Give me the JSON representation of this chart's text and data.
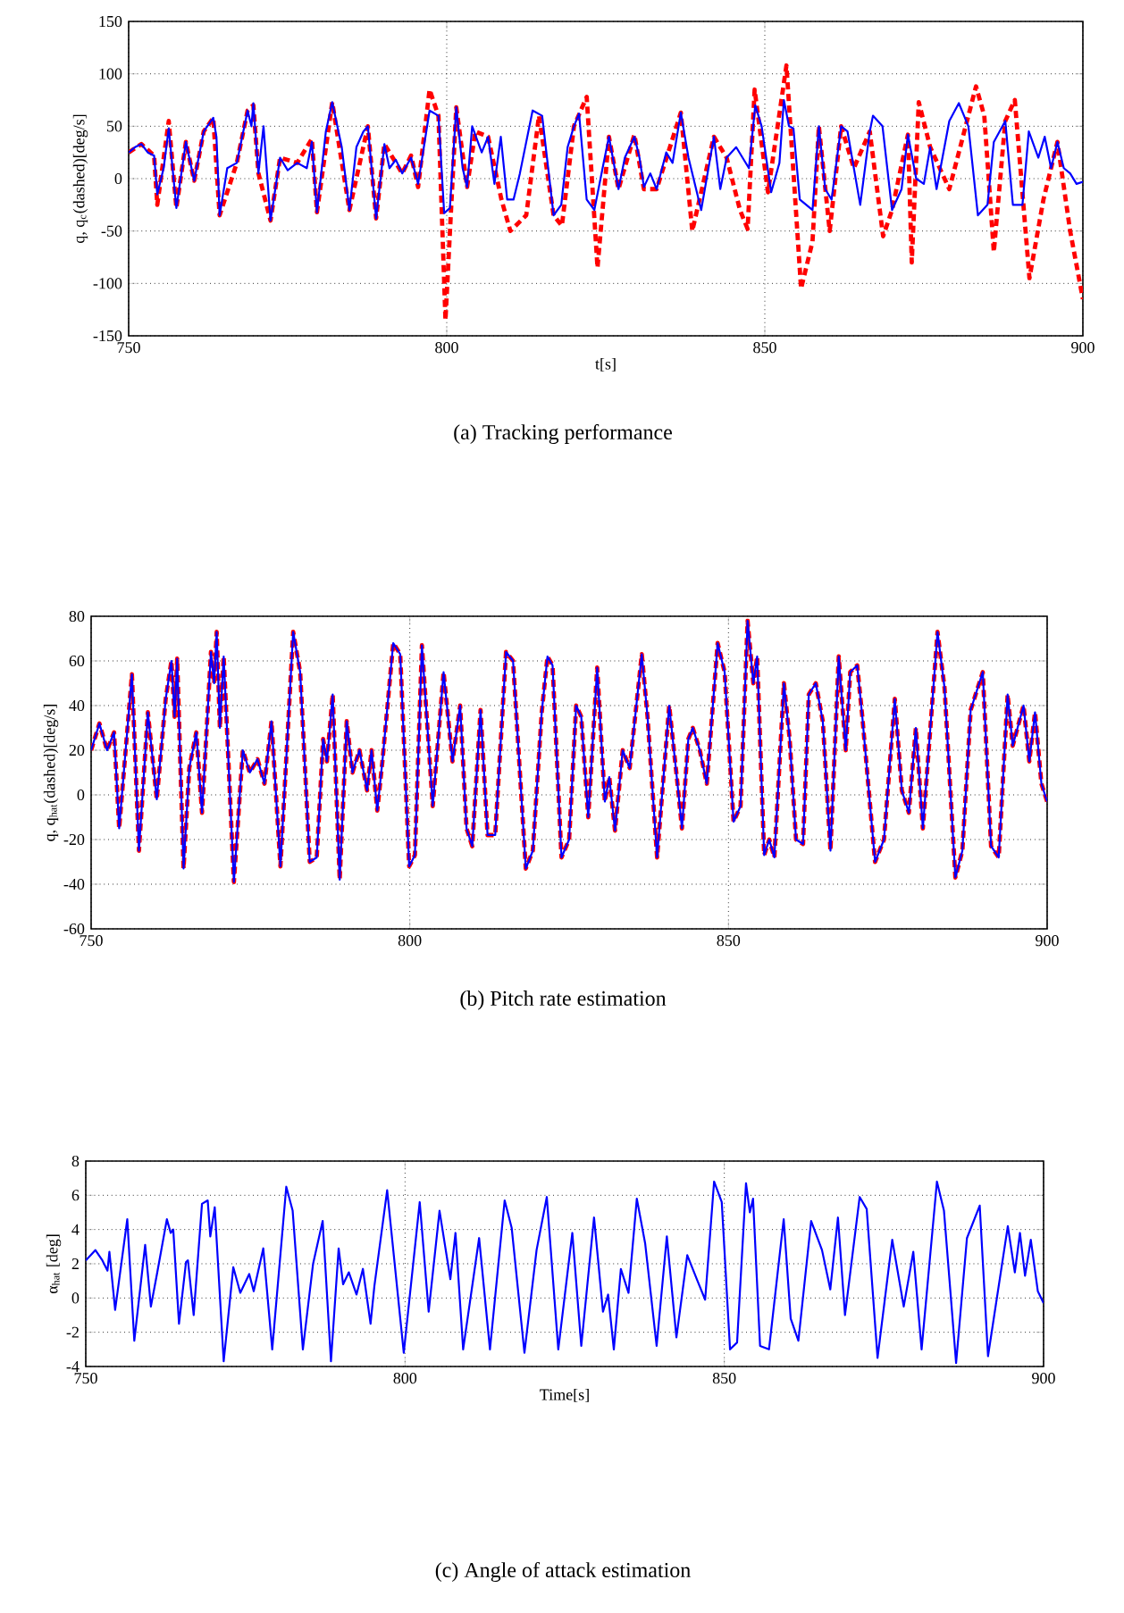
{
  "chart_data": [
    {
      "type": "line",
      "ylabel": "q, q$_{c}$(dashed)[deg/s]",
      "xlabel": "t[s]",
      "annotations": [
        "(a) Tracking performance"
      ],
      "xlim": [
        750,
        900
      ],
      "ylim": [
        -150,
        150
      ],
      "xticks": [
        750,
        800,
        850,
        900
      ],
      "yticks": [
        -150,
        -100,
        -50,
        0,
        50,
        100,
        150
      ],
      "grid": true,
      "series": [
        {
          "color": "#ff0000",
          "line_style": "dashed",
          "x": [
            750,
            752,
            754,
            754.5,
            756.3,
            757.5,
            759,
            760.3,
            761.8,
            763.3,
            764.3,
            767,
            768.7,
            769.6,
            770.4,
            772.3,
            773.8,
            776.5,
            778.8,
            779.6,
            782,
            784.7,
            787.6,
            788.9,
            790.2,
            793,
            794.4,
            795.5,
            797.3,
            798.7,
            799.8,
            801.5,
            803.2,
            804.5,
            806.5,
            808.6,
            810,
            812.5,
            814.5,
            816.8,
            818.1,
            820,
            822,
            823.7,
            825.5,
            827,
            829.5,
            831,
            833,
            836.8,
            838.6,
            842,
            844,
            846.1,
            847.3,
            848.4,
            850.5,
            853.4,
            855.7,
            857.5,
            858.5,
            860.2,
            862,
            864,
            866.5,
            868.6,
            870,
            872.5,
            873.1,
            874.2,
            876,
            879,
            883.2,
            884.5,
            886,
            887.8,
            889.3,
            891.6,
            893.8,
            895,
            896,
            898,
            900
          ],
          "values": [
            25,
            33,
            22,
            -25,
            55,
            -28,
            35,
            -2,
            45,
            58,
            -35,
            15,
            65,
            70,
            5,
            -40,
            20,
            15,
            38,
            -32,
            73,
            -30,
            50,
            -38,
            33,
            5,
            22,
            -8,
            85,
            60,
            -135,
            68,
            -8,
            45,
            40,
            -20,
            -50,
            -35,
            60,
            -35,
            -45,
            50,
            78,
            -85,
            40,
            -10,
            42,
            -10,
            -10,
            63,
            -50,
            40,
            20,
            -30,
            -48,
            85,
            -13,
            108,
            -105,
            -60,
            50,
            -50,
            50,
            10,
            45,
            -55,
            -30,
            42,
            -80,
            73,
            30,
            -10,
            88,
            60,
            -70,
            55,
            75,
            -95,
            -20,
            10,
            35,
            -50,
            -115
          ]
        },
        {
          "color": "#0000ff",
          "line_style": "solid",
          "x": [
            750,
            751,
            752,
            753,
            754,
            754.5,
            755.5,
            756.3,
            757.5,
            759,
            760.3,
            761.8,
            763.3,
            763.8,
            764.3,
            765.5,
            767,
            768.7,
            769.3,
            769.6,
            770.4,
            771.2,
            772.3,
            773.8,
            775,
            776.5,
            778,
            778.8,
            779.6,
            781,
            782,
            783.5,
            784.7,
            785.8,
            786.9,
            787.6,
            788.9,
            790.2,
            791,
            792,
            793,
            794.4,
            795.5,
            797.3,
            798.7,
            799.6,
            800.5,
            801.5,
            802.5,
            803.2,
            804,
            805.5,
            806.5,
            807.5,
            808.5,
            809.5,
            810.5,
            811.5,
            813.5,
            815,
            816.8,
            818,
            819,
            820,
            820.8,
            822,
            823.2,
            824.5,
            825.5,
            827,
            828,
            829.5,
            830.3,
            831,
            832,
            833,
            834.5,
            835.5,
            836.8,
            838,
            840,
            842,
            843,
            844,
            845.5,
            846.5,
            847.5,
            848.5,
            849.5,
            851,
            852.3,
            853,
            853.8,
            854.5,
            855.5,
            856.5,
            857.5,
            858.5,
            859.5,
            860.5,
            862,
            863,
            864,
            865,
            866.5,
            867,
            868.5,
            870,
            871.5,
            872.5,
            873.8,
            875,
            876,
            877,
            879,
            880.5,
            882,
            883.5,
            885,
            886,
            887.8,
            889,
            890.5,
            891.5,
            893,
            894,
            895,
            896,
            897,
            898,
            899,
            900
          ],
          "values": [
            25,
            30,
            33,
            25,
            22,
            -15,
            10,
            48,
            -28,
            35,
            -2,
            45,
            58,
            40,
            -35,
            10,
            15,
            65,
            50,
            72,
            5,
            50,
            -40,
            20,
            8,
            15,
            10,
            35,
            -32,
            45,
            73,
            30,
            -30,
            30,
            45,
            50,
            -38,
            33,
            10,
            18,
            5,
            20,
            -5,
            65,
            60,
            -33,
            -28,
            68,
            10,
            -8,
            50,
            25,
            40,
            -5,
            40,
            -20,
            -20,
            5,
            65,
            60,
            -35,
            -25,
            30,
            50,
            62,
            -20,
            -30,
            10,
            40,
            -10,
            20,
            40,
            20,
            -8,
            5,
            -10,
            25,
            15,
            63,
            20,
            -30,
            40,
            -10,
            20,
            30,
            20,
            10,
            70,
            50,
            -13,
            15,
            75,
            50,
            48,
            -20,
            -25,
            -30,
            50,
            -10,
            -20,
            50,
            45,
            10,
            -25,
            45,
            60,
            50,
            -30,
            -10,
            42,
            0,
            -5,
            30,
            -10,
            55,
            72,
            50,
            -35,
            -25,
            35,
            55,
            -25,
            -25,
            45,
            20,
            40,
            10,
            35,
            10,
            5,
            -5,
            -3
          ]
        }
      ]
    },
    {
      "type": "line",
      "ylabel": "q, q$_{hat}$(dashed)[deg/s]",
      "annotations": [
        "(b) Pitch rate estimation"
      ],
      "xlim": [
        750,
        900
      ],
      "ylim": [
        -60,
        80
      ],
      "xticks": [
        750,
        800,
        850,
        900
      ],
      "yticks": [
        -60,
        -40,
        -20,
        0,
        20,
        40,
        60,
        80
      ],
      "grid": true,
      "series": [
        {
          "color": "#ff0000",
          "line_style": "dashed",
          "x": [
            750,
            751.3,
            752.5,
            753.6,
            754.4,
            756.4,
            757.5,
            758.9,
            760.3,
            761.7,
            762.6,
            763.1,
            763.5,
            764.5,
            765.4,
            766.5,
            767.4,
            768.8,
            769.3,
            769.7,
            770.2,
            770.8,
            772.4,
            773.8,
            774.9,
            776.1,
            777.2,
            778.3,
            779.7,
            781.7,
            782.8,
            784.3,
            785.4,
            786.4,
            787,
            787.9,
            789,
            790.1,
            791,
            792.1,
            793.3,
            794,
            794.9,
            795.7,
            797.4,
            798.5,
            799.9,
            800.8,
            801.9,
            803.6,
            805.3,
            806.7,
            807.9,
            808.9,
            809.8,
            811.1,
            812.2,
            813.4,
            815.1,
            816.2,
            818.2,
            819.3,
            820.7,
            821.6,
            822.4,
            823.8,
            825,
            826.1,
            826.9,
            828,
            829.4,
            830.6,
            831.3,
            832.2,
            833.4,
            834.5,
            836.4,
            837.3,
            838.8,
            840.7,
            842,
            842.7,
            843.7,
            844.4,
            845.5,
            846.6,
            848.3,
            849.4,
            850.8,
            851.9,
            853,
            853.9,
            854.5,
            855.6,
            856.4,
            857.2,
            858.7,
            859.6,
            860.6,
            861.7,
            862.6,
            863.7,
            864.8,
            866,
            867.3,
            868.4,
            869.1,
            870.2,
            871,
            873,
            874.4,
            876.1,
            877.2,
            878.3,
            879.4,
            880.5,
            882.8,
            883.9,
            885.6,
            886.7,
            888,
            889.9,
            891.2,
            892.4,
            893.8,
            894.6,
            896.3,
            897.2,
            898.1,
            899.1,
            900
          ],
          "values": [
            20,
            32,
            20,
            28,
            -15,
            54,
            -25,
            37,
            -2,
            43,
            60,
            35,
            61,
            -33,
            12,
            28,
            -8,
            64,
            50,
            73,
            30,
            62,
            -39,
            20,
            10,
            16,
            5,
            33,
            -32,
            73,
            55,
            -30,
            -28,
            25,
            15,
            45,
            -38,
            33,
            10,
            20,
            2,
            20,
            -7,
            15,
            68,
            63,
            -32,
            -27,
            67,
            -5,
            55,
            15,
            40,
            -15,
            -23,
            38,
            -18,
            -18,
            64,
            60,
            -33,
            -25,
            37,
            62,
            58,
            -28,
            -20,
            40,
            35,
            -10,
            57,
            -3,
            8,
            -16,
            20,
            12,
            63,
            35,
            -28,
            40,
            5,
            -15,
            25,
            30,
            20,
            5,
            68,
            55,
            -12,
            -5,
            78,
            50,
            62,
            -27,
            -20,
            -28,
            50,
            25,
            -20,
            -22,
            45,
            50,
            33,
            -25,
            62,
            20,
            55,
            58,
            35,
            -30,
            -20,
            43,
            2,
            -8,
            30,
            -15,
            73,
            48,
            -37,
            -25,
            38,
            55,
            -23,
            -28,
            45,
            22,
            40,
            15,
            37,
            5,
            -3
          ]
        },
        {
          "color": "#0000ff",
          "line_style": "solid",
          "x": [
            750,
            751.3,
            752.5,
            753.6,
            754.4,
            756.4,
            757.5,
            758.9,
            760.3,
            761.7,
            762.6,
            763.1,
            763.5,
            764.5,
            765.4,
            766.5,
            767.4,
            768.8,
            769.3,
            769.7,
            770.2,
            770.8,
            772.4,
            773.8,
            774.9,
            776.1,
            777.2,
            778.3,
            779.7,
            781.7,
            782.8,
            784.3,
            785.4,
            786.4,
            787,
            787.9,
            789,
            790.1,
            791,
            792.1,
            793.3,
            794,
            794.9,
            795.7,
            797.4,
            798.5,
            799.9,
            800.8,
            801.9,
            803.6,
            805.3,
            806.7,
            807.9,
            808.9,
            809.8,
            811.1,
            812.2,
            813.4,
            815.1,
            816.2,
            818.2,
            819.3,
            820.7,
            821.6,
            822.4,
            823.8,
            825,
            826.1,
            826.9,
            828,
            829.4,
            830.6,
            831.3,
            832.2,
            833.4,
            834.5,
            836.4,
            837.3,
            838.8,
            840.7,
            842,
            842.7,
            843.7,
            844.4,
            845.5,
            846.6,
            848.3,
            849.4,
            850.8,
            851.9,
            853,
            853.9,
            854.5,
            855.6,
            856.4,
            857.2,
            858.7,
            859.6,
            860.6,
            861.7,
            862.6,
            863.7,
            864.8,
            866,
            867.3,
            868.4,
            869.1,
            870.2,
            871,
            873,
            874.4,
            876.1,
            877.2,
            878.3,
            879.4,
            880.5,
            882.8,
            883.9,
            885.6,
            886.7,
            888,
            889.9,
            891.2,
            892.4,
            893.8,
            894.6,
            896.3,
            897.2,
            898.1,
            899.1,
            900
          ],
          "values": [
            20,
            32,
            20,
            28,
            -15,
            54,
            -25,
            37,
            -2,
            43,
            60,
            35,
            61,
            -33,
            12,
            28,
            -8,
            64,
            50,
            73,
            30,
            62,
            -39,
            20,
            10,
            16,
            5,
            33,
            -32,
            73,
            55,
            -30,
            -28,
            25,
            15,
            45,
            -38,
            33,
            10,
            20,
            2,
            20,
            -7,
            15,
            68,
            63,
            -32,
            -27,
            67,
            -5,
            55,
            15,
            40,
            -15,
            -23,
            38,
            -18,
            -18,
            64,
            60,
            -33,
            -25,
            37,
            62,
            58,
            -28,
            -20,
            40,
            35,
            -10,
            57,
            -3,
            8,
            -16,
            20,
            12,
            63,
            35,
            -28,
            40,
            5,
            -15,
            25,
            30,
            20,
            5,
            68,
            55,
            -12,
            -5,
            78,
            50,
            62,
            -27,
            -20,
            -28,
            50,
            25,
            -20,
            -22,
            45,
            50,
            33,
            -25,
            62,
            20,
            55,
            58,
            35,
            -30,
            -20,
            43,
            2,
            -8,
            30,
            -15,
            73,
            48,
            -37,
            -25,
            38,
            55,
            -23,
            -28,
            45,
            22,
            40,
            15,
            37,
            5,
            -3
          ]
        }
      ]
    },
    {
      "type": "line",
      "ylabel": "α$_{hat}$ [deg]",
      "xlabel": "Time[s]",
      "annotations": [
        "(c) Angle of attack estimation"
      ],
      "xlim": [
        750,
        900
      ],
      "ylim": [
        -4,
        8
      ],
      "xticks": [
        750,
        800,
        850,
        900
      ],
      "yticks": [
        -4,
        -2,
        0,
        2,
        4,
        6,
        8
      ],
      "grid": true,
      "series": [
        {
          "color": "#0000ff",
          "line_style": "solid",
          "x": [
            750,
            751.5,
            752.6,
            753.4,
            753.7,
            754.6,
            756.5,
            757.6,
            759.3,
            760.2,
            761.2,
            762.7,
            763.3,
            763.7,
            764.6,
            765.7,
            766,
            766.9,
            768.2,
            769.1,
            769.5,
            770.2,
            771.6,
            773.1,
            774.2,
            775.6,
            776.3,
            777.8,
            779.2,
            781.4,
            782.4,
            784,
            785.6,
            787.1,
            788.4,
            789.6,
            790.3,
            791.2,
            792.4,
            793.4,
            794.6,
            795.2,
            797.2,
            799.8,
            802.3,
            803.7,
            805.4,
            807.1,
            807.9,
            809.1,
            811.6,
            813.3,
            815.6,
            816.7,
            818.7,
            820.6,
            822.2,
            824,
            826.2,
            827.6,
            829.6,
            831,
            831.8,
            832.7,
            833.8,
            835,
            836.3,
            837.6,
            839.4,
            841,
            842.5,
            844.2,
            845.8,
            847,
            848.4,
            849.6,
            850.9,
            852,
            853.4,
            854,
            854.5,
            855.6,
            857,
            859.3,
            860.4,
            861.6,
            863.6,
            865.3,
            866.6,
            867.8,
            868.9,
            871.2,
            872.3,
            874,
            876.3,
            878.1,
            879.6,
            880.9,
            883.3,
            884.4,
            886.3,
            888,
            890,
            891.3,
            894.4,
            895.5,
            896.3,
            897.1,
            898,
            899.1,
            900
          ],
          "values": [
            2.2,
            2.8,
            2.2,
            1.6,
            2.7,
            -0.7,
            4.6,
            -2.5,
            3.1,
            -0.5,
            1.5,
            4.6,
            3.8,
            4,
            -1.5,
            2.1,
            2.2,
            -1,
            5.5,
            5.7,
            3.6,
            5.3,
            -3.7,
            1.8,
            0.3,
            1.4,
            0.4,
            2.9,
            -3,
            6.5,
            5.1,
            -3,
            2,
            4.5,
            -3.7,
            2.9,
            0.8,
            1.5,
            0.2,
            1.7,
            -1.5,
            0.7,
            6.3,
            -3.2,
            5.6,
            -0.8,
            5.1,
            1.1,
            3.8,
            -3,
            3.5,
            -3,
            5.7,
            4.1,
            -3.2,
            2.8,
            5.9,
            -3,
            3.8,
            -2.8,
            4.7,
            -0.8,
            0.2,
            -3,
            1.7,
            0.3,
            5.8,
            3.2,
            -2.8,
            3.6,
            -2.3,
            2.5,
            1,
            -0.1,
            6.8,
            5.6,
            -3,
            -2.6,
            6.7,
            5,
            5.8,
            -2.8,
            -3,
            4.6,
            -1.2,
            -2.5,
            4.5,
            2.8,
            0.5,
            4.7,
            -1,
            5.9,
            5.2,
            -3.5,
            3.4,
            -0.5,
            2.7,
            -3,
            6.8,
            5.1,
            -3.8,
            3.5,
            5.4,
            -3.4,
            4.2,
            1.5,
            3.8,
            1.3,
            3.4,
            0.4,
            -0.3
          ]
        }
      ]
    }
  ]
}
